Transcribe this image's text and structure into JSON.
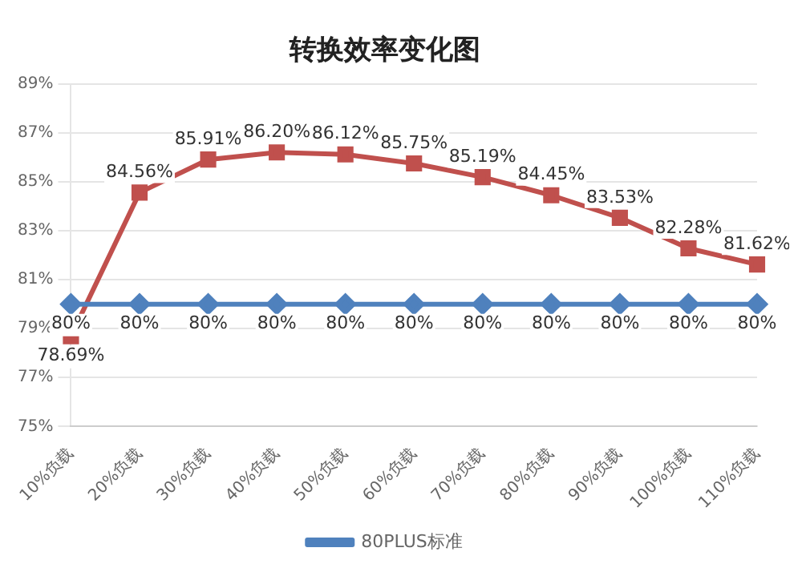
{
  "chart_data": {
    "type": "line",
    "title": "转换效率变化图",
    "categories": [
      "10%负载",
      "20%负载",
      "30%负载",
      "40%负载",
      "50%负载",
      "60%负载",
      "70%负载",
      "80%负载",
      "90%负载",
      "100%负载",
      "110%负载"
    ],
    "series": [
      {
        "name": "80PLUS标准",
        "color": "#4f81bd",
        "marker": "diamond",
        "values": [
          80,
          80,
          80,
          80,
          80,
          80,
          80,
          80,
          80,
          80,
          80
        ],
        "value_labels": [
          "80%",
          "80%",
          "80%",
          "80%",
          "80%",
          "80%",
          "80%",
          "80%",
          "80%",
          "80%",
          "80%"
        ]
      },
      {
        "color": "#c0504d",
        "marker": "square",
        "values": [
          78.69,
          84.56,
          85.91,
          86.2,
          86.12,
          85.75,
          85.19,
          84.45,
          83.53,
          82.28,
          81.62
        ],
        "value_labels": [
          "78.69%",
          "84.56%",
          "85.91%",
          "86.20%",
          "86.12%",
          "85.75%",
          "85.19%",
          "84.45%",
          "83.53%",
          "82.28%",
          "81.62%"
        ]
      }
    ],
    "ylim": [
      75,
      89
    ],
    "yticks": [
      {
        "value": 75,
        "label": "75%"
      },
      {
        "value": 77,
        "label": "77%"
      },
      {
        "value": 79,
        "label": "79%"
      },
      {
        "value": 81,
        "label": "81%"
      },
      {
        "value": 83,
        "label": "83%"
      },
      {
        "value": 85,
        "label": "85%"
      },
      {
        "value": 87,
        "label": "87%"
      },
      {
        "value": 89,
        "label": "89%"
      }
    ],
    "grid": "y",
    "legend": "bottom",
    "line_style": "solid"
  }
}
